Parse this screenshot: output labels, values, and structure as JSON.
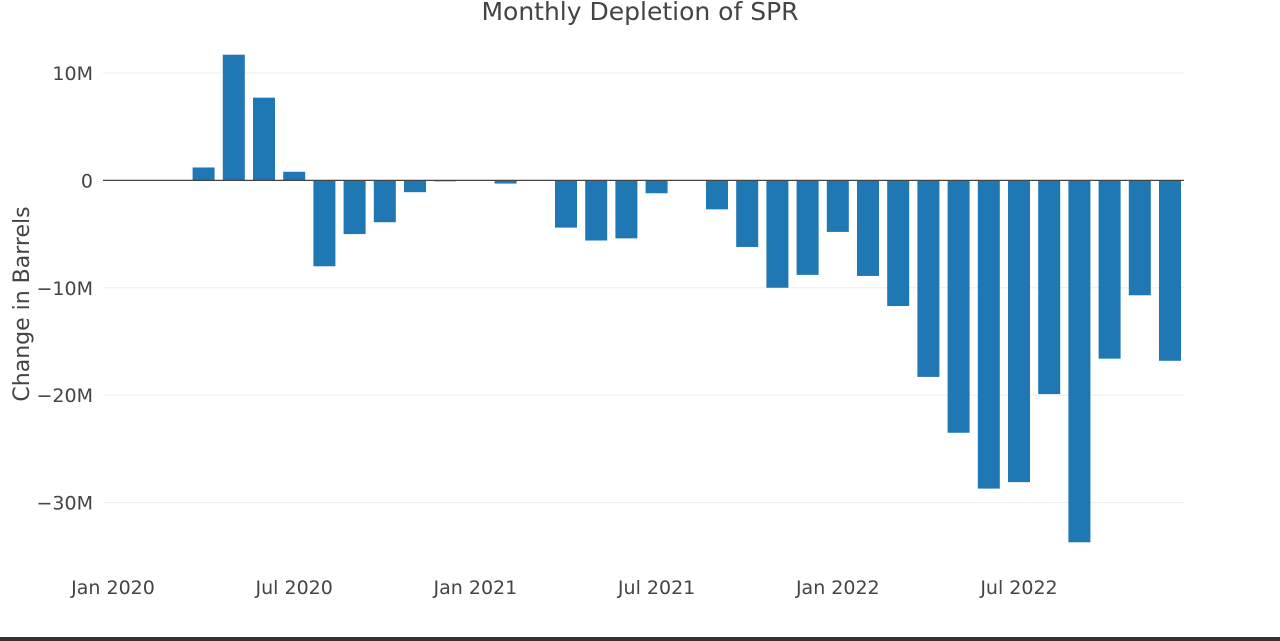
{
  "chart_data": {
    "type": "bar",
    "title": "Monthly Depletion of SPR",
    "xlabel": "",
    "ylabel": "Change in Barrels",
    "x": [
      "2020-01",
      "2020-02",
      "2020-03",
      "2020-04",
      "2020-05",
      "2020-06",
      "2020-07",
      "2020-08",
      "2020-09",
      "2020-10",
      "2020-11",
      "2020-12",
      "2021-01",
      "2021-02",
      "2021-03",
      "2021-04",
      "2021-05",
      "2021-06",
      "2021-07",
      "2021-08",
      "2021-09",
      "2021-10",
      "2021-11",
      "2021-12",
      "2022-01",
      "2022-02",
      "2022-03",
      "2022-04",
      "2022-05",
      "2022-06",
      "2022-07",
      "2022-08",
      "2022-09",
      "2022-10",
      "2022-11",
      "2022-12"
    ],
    "values": [
      0,
      0,
      0,
      1200000,
      11700000,
      7700000,
      800000,
      -8000000,
      -5000000,
      -3900000,
      -1100000,
      -50000,
      0,
      -300000,
      0,
      -4400000,
      -5600000,
      -5400000,
      -1200000,
      0,
      -2700000,
      -6200000,
      -10000000,
      -8800000,
      -4800000,
      -8900000,
      -11700000,
      -18300000,
      -23500000,
      -28700000,
      -28100000,
      -19900000,
      -33700000,
      -16600000,
      -10700000,
      -16800000
    ],
    "color": "#1f77b4",
    "ylim": [
      -36000000,
      14000000
    ],
    "yticks": [
      10000000,
      0,
      -10000000,
      -20000000,
      -30000000
    ],
    "ytick_labels": [
      "10M",
      "0",
      "−10M",
      "−20M",
      "−30M"
    ],
    "xticks": [
      "2020-01",
      "2020-07",
      "2021-01",
      "2021-07",
      "2022-01",
      "2022-07"
    ],
    "xtick_labels": [
      "Jan 2020",
      "Jul 2020",
      "Jan 2021",
      "Jul 2021",
      "Jan 2022",
      "Jul 2022"
    ],
    "grid": true,
    "legend": "none"
  }
}
